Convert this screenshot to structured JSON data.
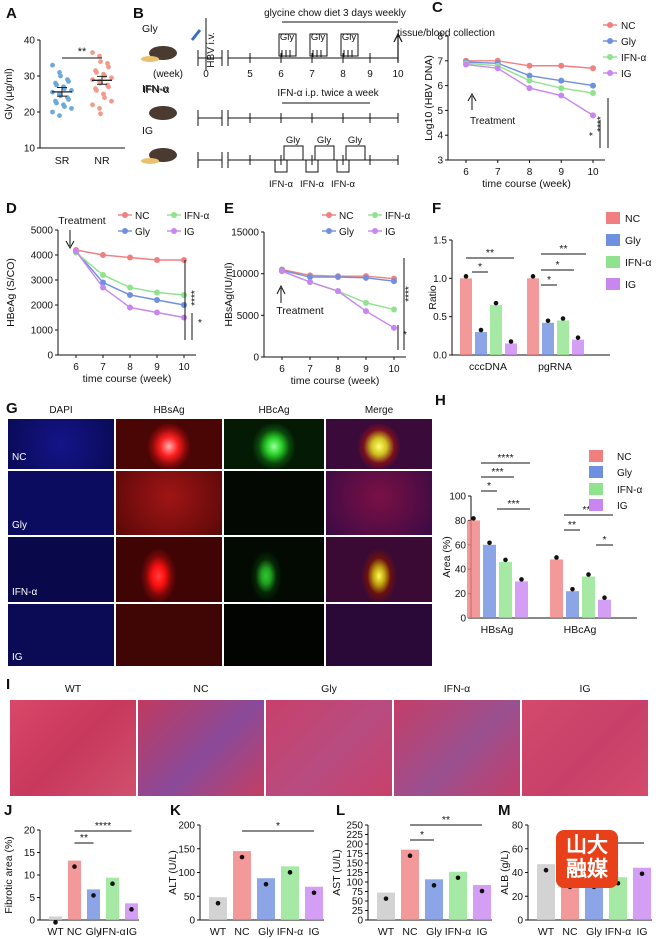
{
  "panel_letters": {
    "A": "A",
    "B": "B",
    "C": "C",
    "D": "D",
    "E": "E",
    "F": "F",
    "G": "G",
    "H": "H",
    "I": "I",
    "J": "J",
    "K": "K",
    "L": "L",
    "M": "M"
  },
  "colors": {
    "NC": "#F08080",
    "Gly": "#6F8FE0",
    "IFN": "#8FE38F",
    "IG": "#C886F0",
    "SR": "#6CA9DC",
    "NR": "#F29A8A"
  },
  "schema": {
    "rows": [
      {
        "label": "Gly"
      },
      {
        "label": "IFN-α"
      },
      {
        "label": "IG"
      }
    ],
    "hbv_label": "HBV i.v.",
    "week_label": "(week)",
    "weeks": [
      "0",
      "5",
      "6",
      "7",
      "8",
      "9",
      "10"
    ],
    "top_note": "glycine chow diet 3 days weekly",
    "tissue_note": "tissue/blood collection",
    "gly_tag": "Gly",
    "ifn_note": "IFN-α i.p. twice a week",
    "ifn_tag": "IFN-α"
  },
  "micro": {
    "columns": [
      "DAPI",
      "HBsAg",
      "HBcAg",
      "Merge"
    ],
    "rows": [
      "NC",
      "Gly",
      "IFN-α",
      "IG"
    ]
  },
  "he": {
    "columns": [
      "WT",
      "NC",
      "Gly",
      "IFN-α",
      "IG"
    ]
  },
  "watermark": {
    "line1": "山大",
    "line2": "融媒"
  },
  "chart_data": [
    {
      "id": "A",
      "type": "scatter",
      "categories": [
        "SR",
        "NR"
      ],
      "ylabel": "Gly (μg/ml)",
      "ylim": [
        10,
        40
      ],
      "yticks": [
        10,
        20,
        30,
        40
      ],
      "series": [
        {
          "name": "SR",
          "values": [
            25.6
          ],
          "sem": 1.2,
          "points": [
            33,
            31,
            30,
            29,
            28.5,
            28,
            27.5,
            27,
            26.5,
            26,
            25.5,
            25,
            24.5,
            24,
            23.5,
            23,
            22.5,
            22,
            21.5,
            21,
            20,
            19
          ]
        },
        {
          "name": "NR",
          "values": [
            28.8
          ],
          "sem": 1.1,
          "points": [
            36.5,
            35.5,
            34,
            33.5,
            32.5,
            31.5,
            31,
            30.5,
            30,
            29.5,
            29,
            28.5,
            28,
            27.5,
            27,
            26.5,
            26,
            25,
            24,
            23,
            22,
            21,
            19.5
          ]
        }
      ],
      "sig": "**"
    },
    {
      "id": "C",
      "type": "line",
      "ylabel": "Log10 (HBV DNA)",
      "xlabel": "time course (week)",
      "x": [
        6,
        7,
        8,
        9,
        10
      ],
      "ylim": [
        3,
        8
      ],
      "yticks": [
        3,
        4,
        5,
        6,
        7,
        8
      ],
      "series": [
        {
          "name": "NC",
          "values": [
            7.0,
            7.0,
            6.8,
            6.8,
            6.7
          ]
        },
        {
          "name": "Gly",
          "values": [
            6.95,
            6.9,
            6.4,
            6.2,
            6.0
          ]
        },
        {
          "name": "IFN-α",
          "values": [
            6.9,
            6.8,
            6.2,
            5.9,
            5.7
          ]
        },
        {
          "name": "IG",
          "values": [
            6.85,
            6.7,
            5.9,
            5.6,
            4.8
          ]
        }
      ],
      "annotation": "Treatment",
      "sig": [
        "*",
        "****"
      ]
    },
    {
      "id": "D",
      "type": "line",
      "ylabel": "HBeAg (S/CO)",
      "xlabel": "time course (week)",
      "x": [
        6,
        7,
        8,
        9,
        10
      ],
      "ylim": [
        0,
        5000
      ],
      "yticks": [
        0,
        1000,
        2000,
        3000,
        4000,
        5000
      ],
      "series": [
        {
          "name": "NC",
          "values": [
            4200,
            4000,
            3900,
            3800,
            3800
          ]
        },
        {
          "name": "Gly",
          "values": [
            4150,
            2900,
            2400,
            2200,
            2000
          ]
        },
        {
          "name": "IFN-α",
          "values": [
            4100,
            3200,
            2700,
            2500,
            2400
          ]
        },
        {
          "name": "IG",
          "values": [
            4150,
            2700,
            1900,
            1700,
            1500
          ]
        }
      ],
      "annotation": "Treatment",
      "sig": [
        "*",
        "****"
      ]
    },
    {
      "id": "E",
      "type": "line",
      "ylabel": "HBsAg(IU/ml)",
      "xlabel": "time course (week)",
      "x": [
        6,
        7,
        8,
        9,
        10
      ],
      "ylim": [
        0,
        15000
      ],
      "yticks": [
        0,
        5000,
        10000,
        15000
      ],
      "series": [
        {
          "name": "NC",
          "values": [
            10500,
            9800,
            9700,
            9700,
            9400
          ]
        },
        {
          "name": "Gly",
          "values": [
            10400,
            9600,
            9600,
            9500,
            9100
          ]
        },
        {
          "name": "IFN-α",
          "values": [
            10300,
            9000,
            7900,
            6500,
            5700
          ]
        },
        {
          "name": "IG",
          "values": [
            10300,
            9000,
            7900,
            5500,
            3500
          ]
        }
      ],
      "annotation": "Treatment",
      "sig": [
        "*",
        "****"
      ]
    },
    {
      "id": "F",
      "type": "bar",
      "categories": [
        "cccDNA",
        "pgRNA"
      ],
      "ylabel": "Ratio",
      "ylim": [
        0,
        1.5
      ],
      "yticks": [
        0.0,
        0.5,
        1.0,
        1.5
      ],
      "series": [
        {
          "name": "NC",
          "values": [
            1.0,
            1.0
          ]
        },
        {
          "name": "Gly",
          "values": [
            0.3,
            0.42
          ]
        },
        {
          "name": "IFN-α",
          "values": [
            0.65,
            0.45
          ]
        },
        {
          "name": "IG",
          "values": [
            0.15,
            0.2
          ]
        }
      ],
      "sig": [
        "*",
        "**",
        "*",
        "*",
        "**"
      ]
    },
    {
      "id": "H",
      "type": "bar",
      "categories": [
        "HBsAg",
        "HBcAg"
      ],
      "ylabel": "Area (%)",
      "ylim": [
        0,
        100
      ],
      "yticks": [
        0,
        20,
        40,
        60,
        80,
        100
      ],
      "series": [
        {
          "name": "NC",
          "values": [
            80,
            48
          ]
        },
        {
          "name": "Gly",
          "values": [
            60,
            22
          ]
        },
        {
          "name": "IFN-α",
          "values": [
            46,
            34
          ]
        },
        {
          "name": "IG",
          "values": [
            30,
            15
          ]
        }
      ],
      "sig": [
        "*",
        "***",
        "****",
        "***",
        "**",
        "***",
        "*"
      ]
    },
    {
      "id": "J",
      "type": "bar",
      "categories": [
        "WT",
        "NC",
        "Gly",
        "IFN-α",
        "IG"
      ],
      "ylabel": "Fibrotic area (%)",
      "ylim": [
        0,
        20
      ],
      "yticks": [
        0,
        5,
        10,
        15,
        20
      ],
      "values": [
        0.8,
        13.2,
        6.8,
        9.4,
        3.7
      ],
      "sig": [
        "**",
        "****"
      ]
    },
    {
      "id": "K",
      "type": "bar",
      "categories": [
        "WT",
        "NC",
        "Gly",
        "IFN-α",
        "IG"
      ],
      "ylabel": "ALT (U/L)",
      "ylim": [
        0,
        200
      ],
      "yticks": [
        0,
        50,
        100,
        150,
        200
      ],
      "values": [
        48,
        145,
        88,
        113,
        70
      ],
      "sig": [
        "*"
      ]
    },
    {
      "id": "L",
      "type": "bar",
      "categories": [
        "WT",
        "NC",
        "Gly",
        "IFN-α",
        "IG"
      ],
      "ylabel": "AST (U/L)",
      "ylim": [
        0,
        250
      ],
      "yticks": [
        0,
        25,
        50,
        75,
        100,
        125,
        150,
        175,
        200,
        225,
        250
      ],
      "values": [
        72,
        185,
        107,
        127,
        92
      ],
      "sig": [
        "*",
        "**"
      ]
    },
    {
      "id": "M",
      "type": "bar",
      "categories": [
        "WT",
        "NC",
        "Gly",
        "IFN-α",
        "IG"
      ],
      "ylabel": "ALB (g/L)",
      "ylim": [
        0,
        80
      ],
      "yticks": [
        0,
        20,
        40,
        60,
        80
      ],
      "values": [
        47,
        33,
        33,
        36,
        44
      ],
      "sig": []
    }
  ],
  "legend": {
    "NC": "NC",
    "Gly": "Gly",
    "IFN": "IFN-α",
    "IG": "IG"
  }
}
